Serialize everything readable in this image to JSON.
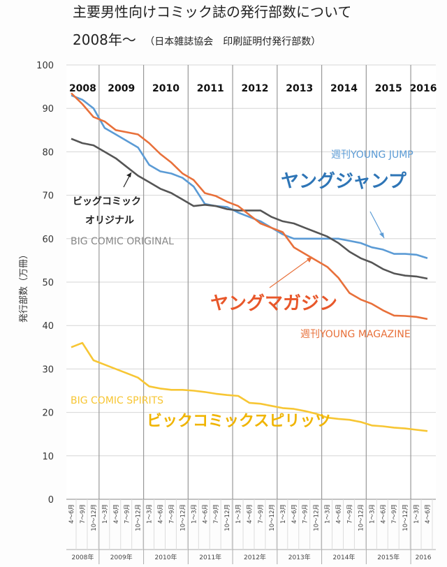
{
  "chart_data": {
    "type": "line",
    "title": "主要男性向けコミック誌の発行部数について",
    "subtitle_main": "2008年〜",
    "subtitle_note": "（日本雑誌協会　印刷証明付発行部数）",
    "ylabel": "発行部数（万冊）",
    "ylim": [
      0,
      100
    ],
    "yticks": [
      0,
      10,
      20,
      30,
      40,
      50,
      60,
      70,
      80,
      90,
      100
    ],
    "years_top": [
      "2008",
      "2009",
      "2010",
      "2011",
      "2012",
      "2013",
      "2014",
      "2015",
      "2016"
    ],
    "years_bottom": [
      "2008年",
      "2009年",
      "2010年",
      "2011年",
      "2012年",
      "2013年",
      "2014年",
      "2015年",
      "2016"
    ],
    "quarter_labels": [
      "4〜6月",
      "7〜9月",
      "10〜12月",
      "1〜3月"
    ],
    "x": [
      "2008Q2",
      "2008Q3",
      "2008Q4",
      "2009Q1",
      "2009Q2",
      "2009Q3",
      "2009Q4",
      "2010Q1",
      "2010Q2",
      "2010Q3",
      "2010Q4",
      "2011Q1",
      "2011Q2",
      "2011Q3",
      "2011Q4",
      "2012Q1",
      "2012Q2",
      "2012Q3",
      "2012Q4",
      "2013Q1",
      "2013Q2",
      "2013Q3",
      "2013Q4",
      "2014Q1",
      "2014Q2",
      "2014Q3",
      "2014Q4",
      "2015Q1",
      "2015Q2",
      "2015Q3",
      "2015Q4",
      "2016Q1",
      "2016Q2"
    ],
    "series": [
      {
        "name": "週刊YOUNG JUMP",
        "label_jp": "ヤングジャンプ",
        "color": "#5b9bd5",
        "values": [
          93,
          92,
          90,
          85.5,
          84,
          82.5,
          81,
          77,
          75.5,
          75,
          74,
          72,
          68,
          67.5,
          67.3,
          66,
          65,
          64,
          62.5,
          61,
          60,
          60,
          60,
          60,
          60,
          59.5,
          59,
          58,
          57.5,
          56.5,
          56.5,
          56.3,
          55.5
        ]
      },
      {
        "name": "BIG COMIC ORIGINAL",
        "label_jp": "ビッグコミック オリジナル",
        "color": "#555555",
        "values": [
          83,
          82,
          81.5,
          80,
          78.5,
          76.5,
          74.5,
          73,
          71.5,
          70.5,
          69,
          67.5,
          67.8,
          67.5,
          66.8,
          66.5,
          66.5,
          66.5,
          65,
          64,
          63.5,
          62.5,
          61.5,
          60.5,
          59,
          57,
          55.5,
          54.5,
          53,
          52,
          51.5,
          51.3,
          50.8
        ]
      },
      {
        "name": "週刊YOUNG MAGAZINE",
        "label_jp": "ヤングマガジン",
        "color": "#e8703a",
        "values": [
          93.5,
          91,
          88,
          87,
          85,
          84.5,
          84,
          82,
          79.5,
          77.5,
          75,
          73.5,
          70.5,
          69.8,
          68.5,
          67.5,
          65.5,
          63.5,
          62.5,
          61.5,
          58,
          56.5,
          55,
          53.5,
          51,
          47.5,
          46,
          45,
          43.5,
          42.3,
          42.2,
          42,
          41.5
        ]
      },
      {
        "name": "BIG COMIC SPIRITS",
        "label_jp": "ビックコミックスピリッツ",
        "color": "#f7c634",
        "values": [
          35,
          36,
          32,
          31,
          30,
          29,
          28,
          26,
          25.5,
          25.2,
          25.2,
          25,
          24.7,
          24.3,
          24,
          23.8,
          22.2,
          22,
          21.5,
          21,
          20.8,
          20.3,
          19.7,
          18.8,
          18.5,
          18.3,
          17.8,
          17,
          16.8,
          16.5,
          16.3,
          16,
          15.7
        ]
      }
    ],
    "annotations": {
      "yj_en": "週刊YOUNG JUMP",
      "yj_jp": "ヤングジャンプ",
      "bco_jp1": "ビッグコミック",
      "bco_jp2": "オリジナル",
      "bco_en": "BIG COMIC ORIGINAL",
      "ym_jp": "ヤングマガジン",
      "ym_en": "週刊YOUNG MAGAZINE",
      "bcs_en": "BIG COMIC SPIRITS",
      "bcs_jp": "ビックコミックスピリッツ"
    }
  }
}
